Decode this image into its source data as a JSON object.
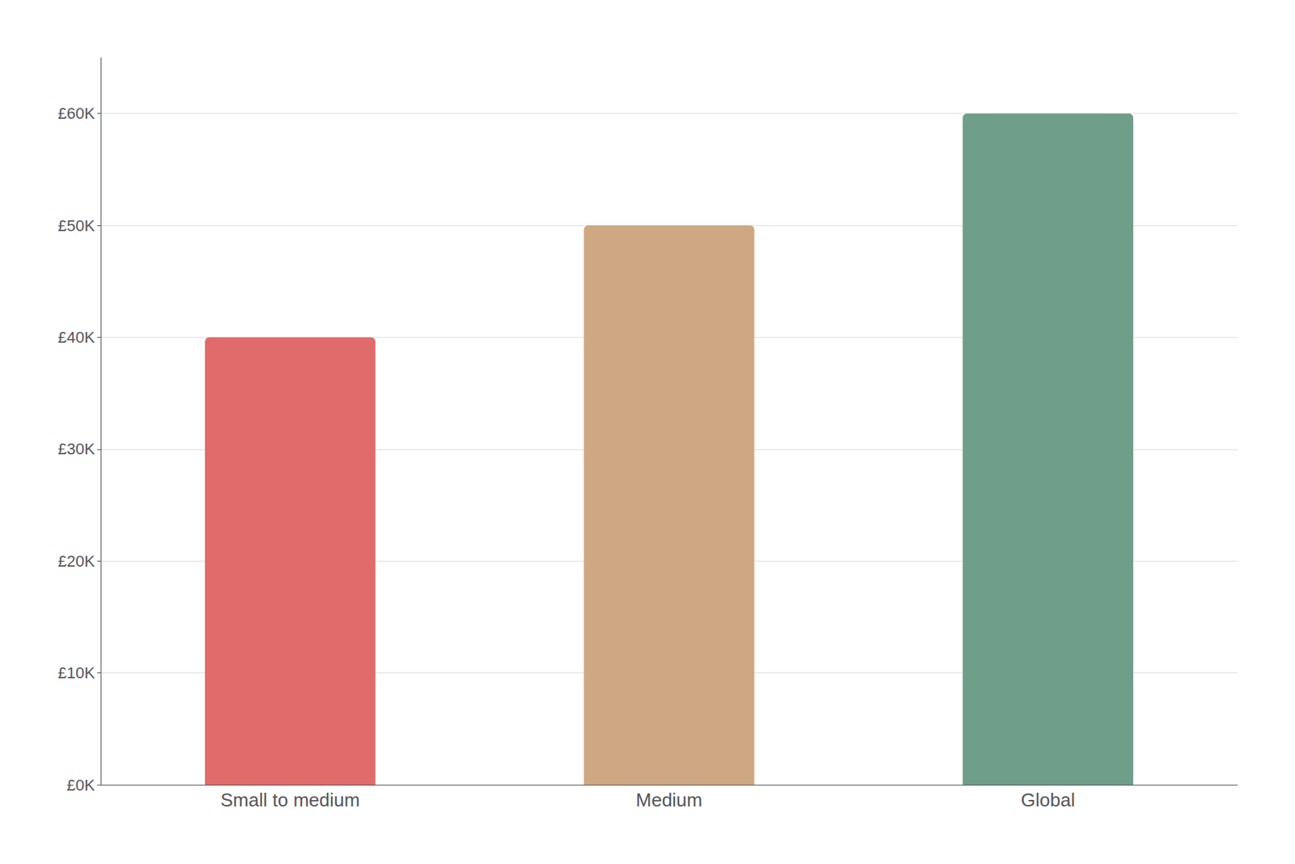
{
  "chart_data": {
    "type": "bar",
    "categories": [
      "Small to medium",
      "Medium",
      "Global"
    ],
    "values": [
      40000,
      50000,
      60000
    ],
    "colors": [
      "#e06b6b",
      "#cda882",
      "#6f9e8a"
    ],
    "ylim": [
      0,
      65000
    ],
    "yticks": [
      {
        "value": 0,
        "label": "£0K"
      },
      {
        "value": 10000,
        "label": "£10K"
      },
      {
        "value": 20000,
        "label": "£20K"
      },
      {
        "value": 30000,
        "label": "£30K"
      },
      {
        "value": 40000,
        "label": "£40K"
      },
      {
        "value": 50000,
        "label": "£50K"
      },
      {
        "value": 60000,
        "label": "£60K"
      }
    ],
    "grid": true
  }
}
